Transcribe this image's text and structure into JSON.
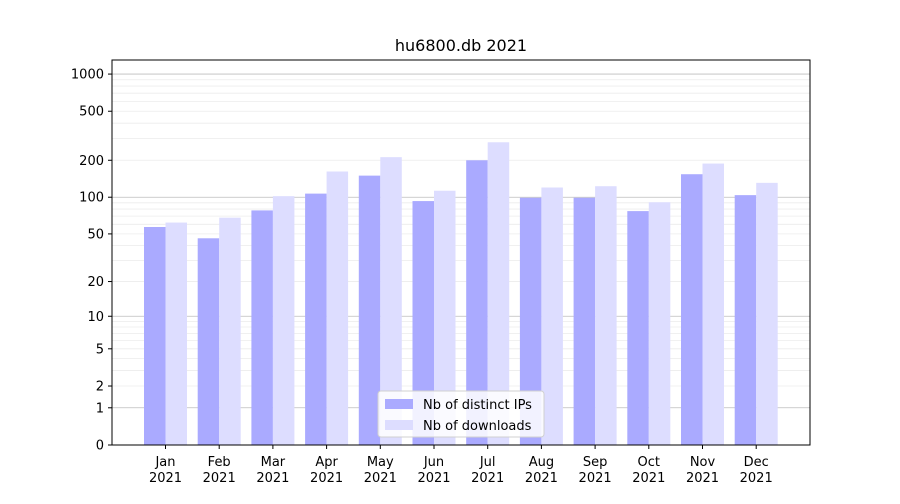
{
  "chart_data": {
    "type": "bar",
    "title": "hu6800.db 2021",
    "xlabel": "",
    "ylabel": "",
    "scale": "symlog",
    "categories": [
      [
        "Jan",
        "2021"
      ],
      [
        "Feb",
        "2021"
      ],
      [
        "Mar",
        "2021"
      ],
      [
        "Apr",
        "2021"
      ],
      [
        "May",
        "2021"
      ],
      [
        "Jun",
        "2021"
      ],
      [
        "Jul",
        "2021"
      ],
      [
        "Aug",
        "2021"
      ],
      [
        "Sep",
        "2021"
      ],
      [
        "Oct",
        "2021"
      ],
      [
        "Nov",
        "2021"
      ],
      [
        "Dec",
        "2021"
      ]
    ],
    "series": [
      {
        "name": "Nb of distinct IPs",
        "color": "#aaaaff",
        "values": [
          57,
          46,
          78,
          107,
          150,
          93,
          200,
          99,
          99,
          77,
          154,
          104
        ]
      },
      {
        "name": "Nb of downloads",
        "color": "#ddddff",
        "values": [
          62,
          68,
          102,
          162,
          212,
          113,
          280,
          120,
          123,
          91,
          188,
          131
        ]
      }
    ],
    "ylim": [
      0,
      1300
    ],
    "yticks": [
      0,
      1,
      2,
      5,
      10,
      20,
      50,
      100,
      200,
      500,
      1000
    ],
    "grid": true,
    "legend_position": "bottom-center"
  }
}
